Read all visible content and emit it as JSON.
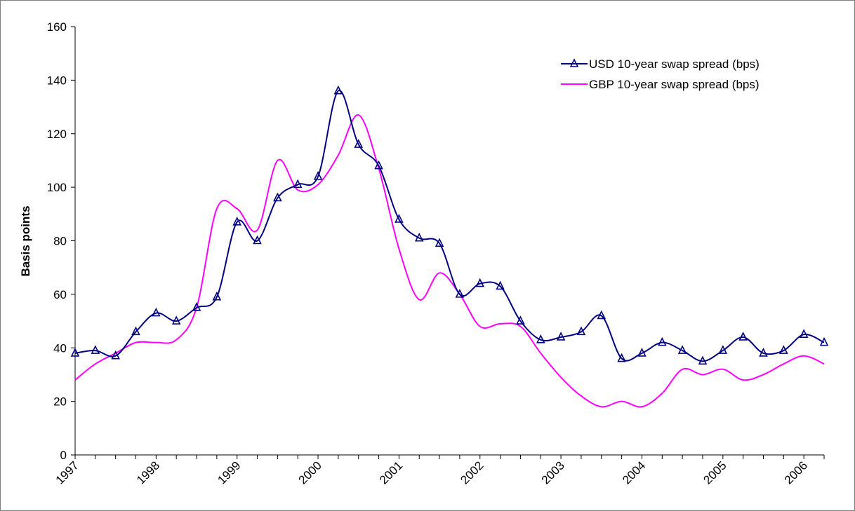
{
  "chart_data": {
    "type": "line",
    "title": "",
    "xlabel": "",
    "ylabel": "Basis points",
    "ylim": [
      0,
      160
    ],
    "yticks": [
      0,
      20,
      40,
      60,
      80,
      100,
      120,
      140,
      160
    ],
    "x_tick_labels": [
      "1997",
      "1998",
      "1999",
      "2000",
      "2001",
      "2002",
      "2003",
      "2004",
      "2005",
      "2006"
    ],
    "x": [
      1997.0,
      1997.25,
      1997.5,
      1997.75,
      1998.0,
      1998.25,
      1998.5,
      1998.75,
      1999.0,
      1999.25,
      1999.5,
      1999.75,
      2000.0,
      2000.25,
      2000.5,
      2000.75,
      2001.0,
      2001.25,
      2001.5,
      2001.75,
      2002.0,
      2002.25,
      2002.5,
      2002.75,
      2003.0,
      2003.25,
      2003.5,
      2003.75,
      2004.0,
      2004.25,
      2004.5,
      2004.75,
      2005.0,
      2005.25,
      2005.5,
      2005.75,
      2006.0,
      2006.25
    ],
    "series": [
      {
        "name": "USD 10-year swap spread (bps)",
        "color": "#000080",
        "marker": "triangle",
        "values": [
          38,
          39,
          37,
          46,
          53,
          50,
          55,
          59,
          87,
          80,
          96,
          101,
          104,
          136,
          116,
          108,
          88,
          81,
          79,
          60,
          64,
          63,
          50,
          43,
          44,
          46,
          52,
          36,
          38,
          42,
          39,
          35,
          39,
          44,
          38,
          39,
          45,
          42
        ]
      },
      {
        "name": "GBP 10-year swap spread (bps)",
        "color": "#ff00ff",
        "marker": "none",
        "values": [
          28,
          34,
          38,
          42,
          42,
          43,
          55,
          92,
          92,
          84,
          110,
          99,
          101,
          112,
          127,
          107,
          77,
          58,
          68,
          60,
          48,
          49,
          48,
          38,
          29,
          22,
          18,
          20,
          18,
          23,
          32,
          30,
          32,
          28,
          30,
          34,
          37,
          34
        ]
      }
    ],
    "legend": {
      "position": "top-right"
    },
    "grid": false
  }
}
